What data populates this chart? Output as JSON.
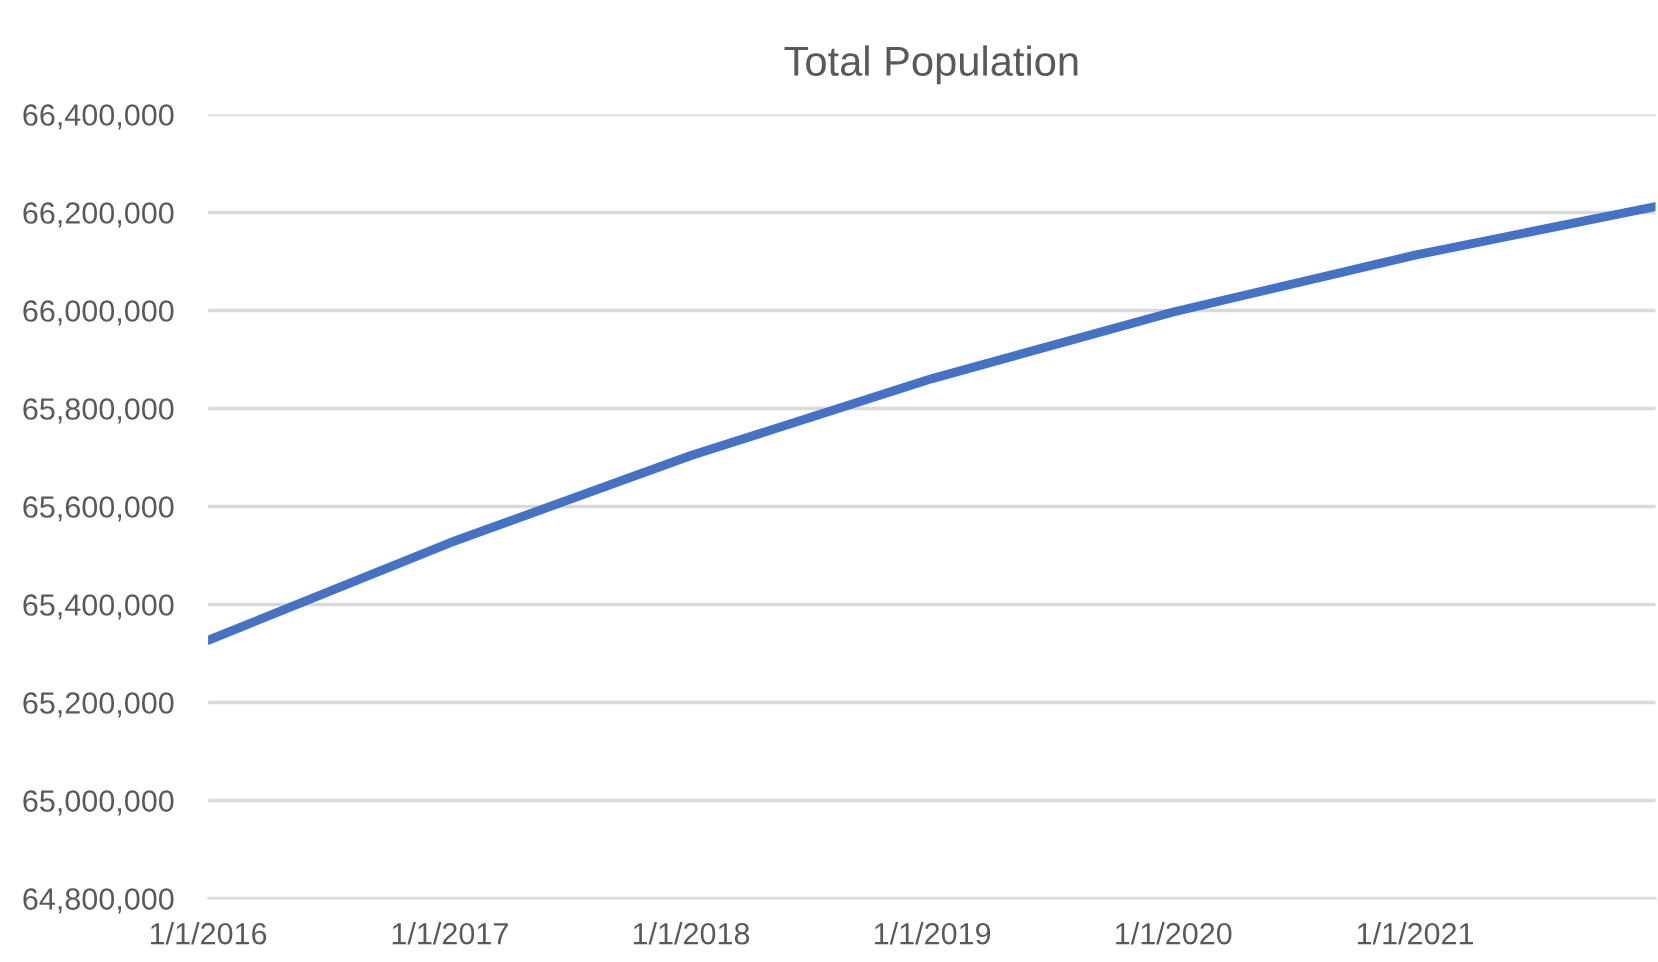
{
  "chart_data": {
    "type": "line",
    "title": "Total Population",
    "x": [
      "2016-01-01",
      "2017-01-01",
      "2018-01-01",
      "2019-01-01",
      "2020-01-01",
      "2021-01-01",
      "2021-12-31"
    ],
    "series": [
      {
        "color": "#4472c4",
        "values": [
          65327000,
          65526000,
          65704000,
          65861000,
          65997000,
          66113000,
          66212000
        ]
      }
    ],
    "xlim": [
      "2016-01-01",
      "2021-12-31"
    ],
    "xticks": [
      {
        "value": "2016-01-01",
        "label": "1/1/2016"
      },
      {
        "value": "2017-01-01",
        "label": "1/1/2017"
      },
      {
        "value": "2018-01-01",
        "label": "1/1/2018"
      },
      {
        "value": "2019-01-01",
        "label": "1/1/2019"
      },
      {
        "value": "2020-01-01",
        "label": "1/1/2020"
      },
      {
        "value": "2021-01-01",
        "label": "1/1/2021"
      }
    ],
    "ylim": [
      64800000,
      66400000
    ],
    "yticks": [
      {
        "value": 64800000,
        "label": "64,800,000"
      },
      {
        "value": 65000000,
        "label": "65,000,000"
      },
      {
        "value": 65200000,
        "label": "65,200,000"
      },
      {
        "value": 65400000,
        "label": "65,400,000"
      },
      {
        "value": 65600000,
        "label": "65,600,000"
      },
      {
        "value": 65800000,
        "label": "65,800,000"
      },
      {
        "value": 66000000,
        "label": "66,000,000"
      },
      {
        "value": 66200000,
        "label": "66,200,000"
      },
      {
        "value": 66400000,
        "label": "66,400,000"
      }
    ],
    "grid": "y",
    "legend": false,
    "marker": "none",
    "line_style": "solid"
  }
}
